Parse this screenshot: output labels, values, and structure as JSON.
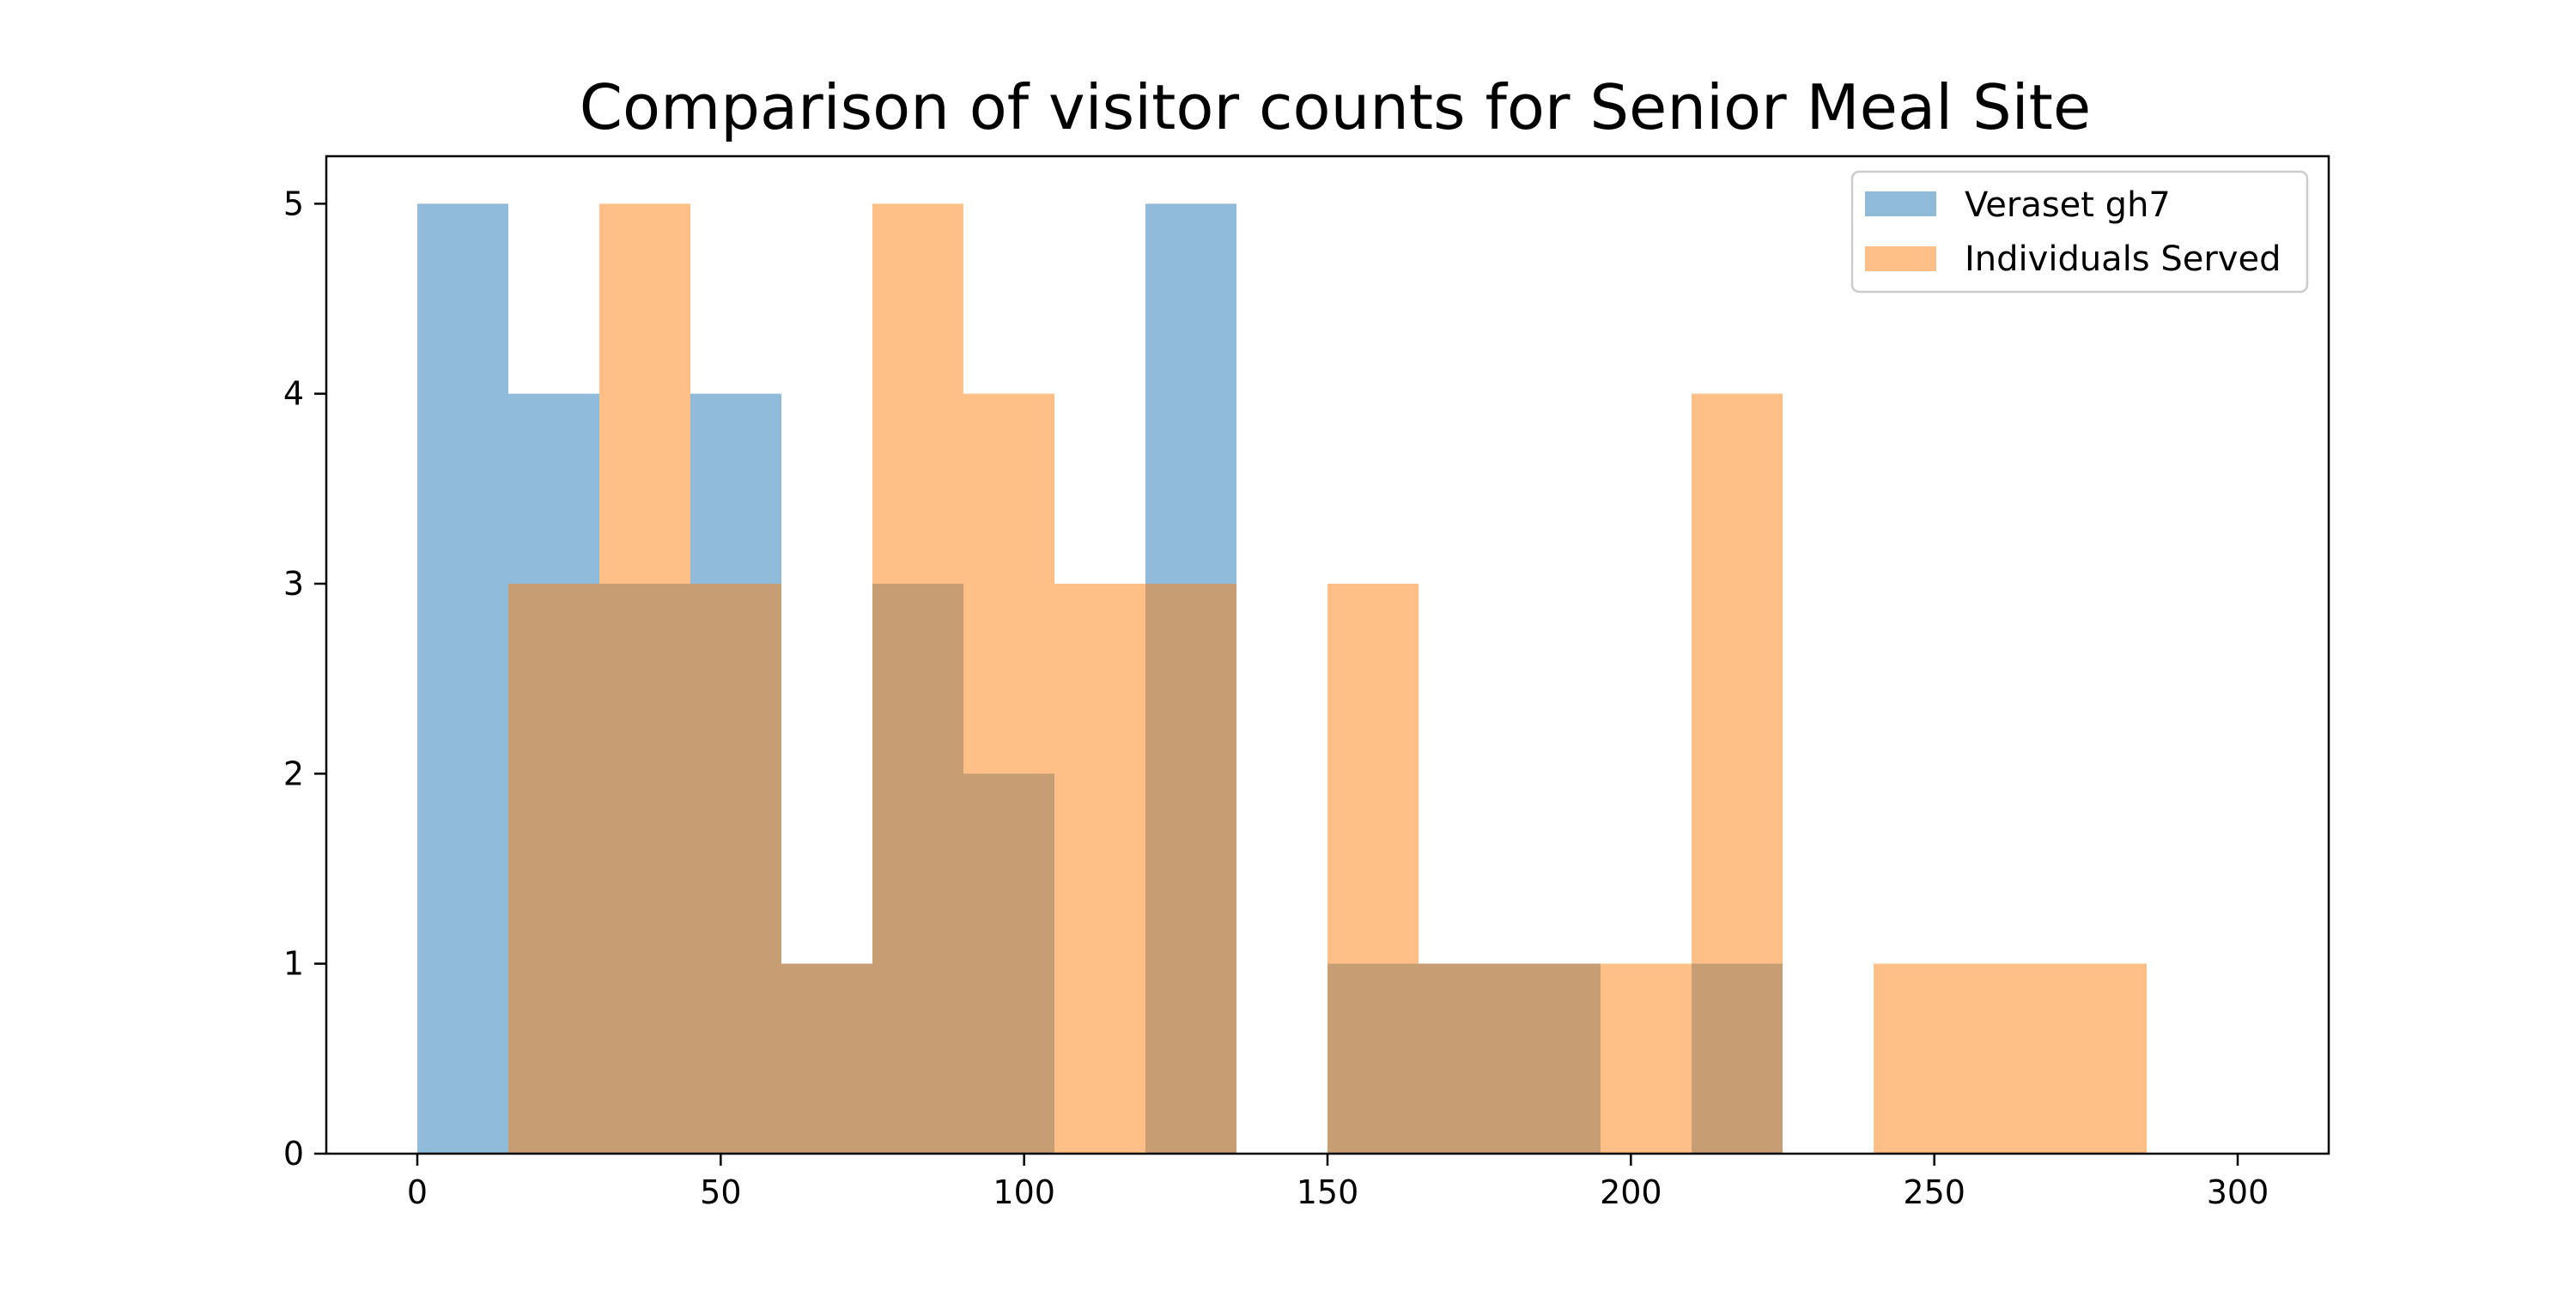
{
  "chart_data": {
    "type": "histogram",
    "title": "Comparison of visitor counts for Senior Meal Site",
    "xlabel": "",
    "ylabel": "",
    "xlim": [
      -15,
      315
    ],
    "ylim": [
      0,
      5.25
    ],
    "xticks": [
      0,
      50,
      100,
      150,
      200,
      250,
      300
    ],
    "yticks": [
      0,
      1,
      2,
      3,
      4,
      5
    ],
    "bin_edges": [
      0,
      15,
      30,
      45,
      60,
      75,
      90,
      105,
      120,
      135,
      150,
      165,
      180,
      195,
      210,
      225,
      240,
      255,
      270,
      285,
      300
    ],
    "legend_position": "top-right",
    "series": [
      {
        "name": "Veraset gh7",
        "color": "#1f77b4",
        "alpha": 0.5,
        "counts": [
          5,
          4,
          3,
          4,
          1,
          3,
          2,
          0,
          5,
          0,
          1,
          1,
          1,
          0,
          1,
          0,
          0,
          0,
          0,
          0
        ]
      },
      {
        "name": "Individuals Served",
        "color": "#ff7f0e",
        "alpha": 0.5,
        "counts": [
          0,
          3,
          5,
          3,
          1,
          5,
          4,
          3,
          3,
          0,
          3,
          1,
          1,
          1,
          4,
          0,
          1,
          1,
          1,
          0
        ]
      }
    ]
  }
}
